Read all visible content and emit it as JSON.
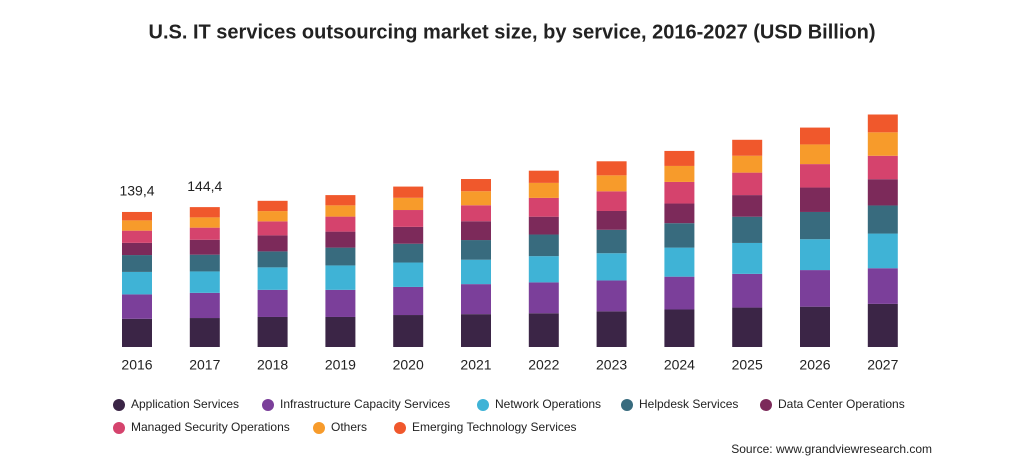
{
  "chart_data": {
    "type": "stacked_bar",
    "title": "U.S. IT services outsourcing market size, by service,  2016-2027 (USD Billion)",
    "source": "Source: www.grandviewresearch.com",
    "categories": [
      "2016",
      "2017",
      "2018",
      "2019",
      "2020",
      "2021",
      "2022",
      "2023",
      "2024",
      "2025",
      "2026",
      "2027"
    ],
    "series": [
      {
        "name": "Application Services",
        "color": "#3b2546",
        "values": [
          29.1,
          29.9,
          31,
          31,
          33,
          33.9,
          34.8,
          36.8,
          38.7,
          40.7,
          41.6,
          44.5
        ]
      },
      {
        "name": "Infrastructure Capacity Services",
        "color": "#7b3f9a",
        "values": [
          25.2,
          26,
          28,
          28,
          29,
          31,
          31.9,
          31.9,
          33.9,
          34.8,
          37.8,
          36.8
        ]
      },
      {
        "name": "Network Operations",
        "color": "#3fb3d6",
        "values": [
          23.2,
          22.1,
          23.2,
          25.2,
          25.2,
          25.2,
          27.1,
          28.1,
          30,
          31.9,
          31.9,
          35.8
        ]
      },
      {
        "name": "Helpdesk Services",
        "color": "#386b7e",
        "values": [
          17.4,
          17.3,
          16.5,
          18.4,
          19.4,
          20.3,
          22.3,
          24.2,
          25.2,
          27.1,
          28.1,
          29
        ]
      },
      {
        "name": "Data Center Operations",
        "color": "#7c2a5a",
        "values": [
          12.6,
          15.4,
          16.5,
          16.5,
          17.4,
          19.4,
          18.4,
          19.4,
          20.3,
          22.3,
          25.2,
          27.1
        ]
      },
      {
        "name": "Managed Security Operations",
        "color": "#d5436d",
        "values": [
          12.6,
          12.5,
          14.5,
          15.5,
          17.4,
          16.5,
          19.4,
          20.3,
          22.3,
          23.2,
          24.2,
          24.2
        ]
      },
      {
        "name": "Others",
        "color": "#f79b2b",
        "values": [
          10.6,
          10.6,
          10.6,
          11.6,
          12.6,
          14.5,
          15.5,
          16.5,
          16.5,
          17.4,
          20.3,
          24.2
        ]
      },
      {
        "name": "Emerging Technology Services",
        "color": "#f0582c",
        "values": [
          8.7,
          10.6,
          10.6,
          10.6,
          11.6,
          12.6,
          12.6,
          14.5,
          15.5,
          16.5,
          17.4,
          18.4
        ]
      }
    ],
    "totals": [
      139.4,
      144.4
    ],
    "total_labels": [
      "139,4",
      "144,4"
    ],
    "ylim": [
      0,
      256
    ]
  }
}
